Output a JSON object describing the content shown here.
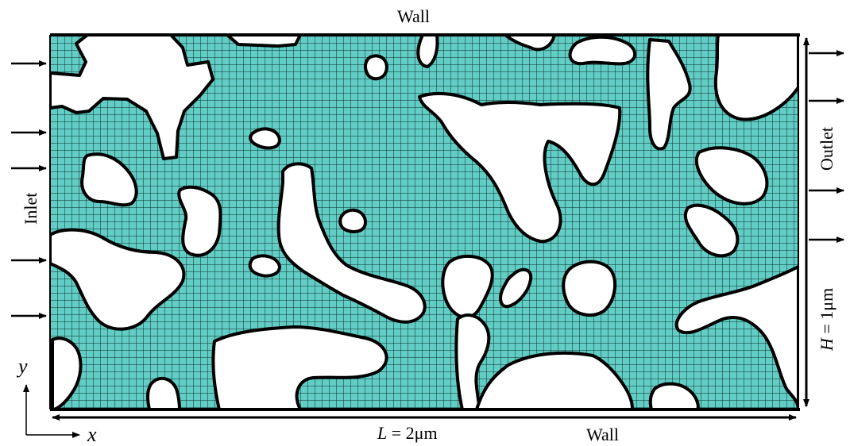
{
  "colors": {
    "fluid": "#62cdc4",
    "mesh_line": "#0b2a2a",
    "solid": "#ffffff",
    "ink": "#000000"
  },
  "labels": {
    "wall_top": "Wall",
    "wall_bottom": "Wall",
    "inlet": "Inlet",
    "outlet": "Outlet",
    "length_symbol": "L",
    "length_value": " = 2μm",
    "height_symbol": "H",
    "height_value": " = 1μm",
    "axis_x": "x",
    "axis_y": "y"
  },
  "icons": {
    "inlet_arrows": "right-arrow-icon",
    "outlet_arrows": "right-arrow-icon",
    "dimension_arrows": "double-headed-arrow-icon"
  }
}
